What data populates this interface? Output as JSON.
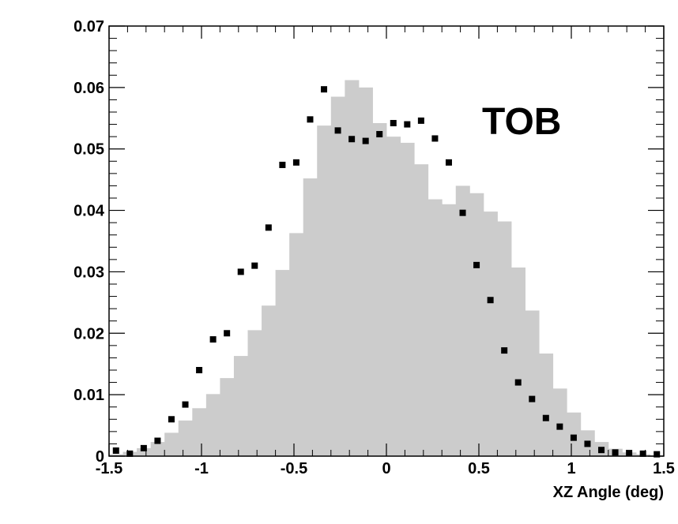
{
  "chart_data": {
    "type": "bar",
    "title": "",
    "xlabel": "XZ Angle (deg)",
    "ylabel": "",
    "annotation": "TOB",
    "xlim": [
      -1.5,
      1.5
    ],
    "ylim": [
      0,
      0.07
    ],
    "grid": false,
    "x_ticks": [
      -1.5,
      -1,
      -0.5,
      0,
      0.5,
      1,
      1.5
    ],
    "x_tick_labels": [
      "-1.5",
      "-1",
      "-0.5",
      "0",
      "0.5",
      "1",
      "1.5"
    ],
    "y_ticks": [
      0,
      0.01,
      0.02,
      0.03,
      0.04,
      0.05,
      0.06,
      0.07
    ],
    "y_tick_labels": [
      "0",
      "0.01",
      "0.02",
      "0.03",
      "0.04",
      "0.05",
      "0.06",
      "0.07"
    ],
    "series": [
      {
        "kind": "filled_histogram",
        "color": "#cccccc",
        "bin_edges": [
          -1.5,
          -1.425,
          -1.35,
          -1.275,
          -1.2,
          -1.125,
          -1.05,
          -0.975,
          -0.9,
          -0.825,
          -0.75,
          -0.675,
          -0.6,
          -0.525,
          -0.45,
          -0.375,
          -0.3,
          -0.225,
          -0.15,
          -0.075,
          0.0,
          0.075,
          0.15,
          0.225,
          0.3,
          0.375,
          0.45,
          0.525,
          0.6,
          0.675,
          0.75,
          0.825,
          0.9,
          0.975,
          1.05,
          1.125,
          1.2,
          1.275,
          1.35,
          1.425,
          1.5
        ],
        "values": [
          0.0003,
          0.0007,
          0.0013,
          0.0023,
          0.0038,
          0.0058,
          0.0078,
          0.0101,
          0.0127,
          0.0163,
          0.0205,
          0.0245,
          0.0303,
          0.0363,
          0.0452,
          0.0538,
          0.0585,
          0.0612,
          0.06,
          0.0542,
          0.052,
          0.051,
          0.0475,
          0.0418,
          0.041,
          0.044,
          0.0428,
          0.0398,
          0.0382,
          0.0307,
          0.0237,
          0.0167,
          0.011,
          0.0071,
          0.0042,
          0.0023,
          0.0012,
          0.0006,
          0.0003,
          0.0001
        ]
      },
      {
        "kind": "markers",
        "color": "#000000",
        "x": [
          -1.4625,
          -1.3875,
          -1.3125,
          -1.2375,
          -1.1625,
          -1.0875,
          -1.0125,
          -0.9375,
          -0.8625,
          -0.7875,
          -0.7125,
          -0.6375,
          -0.5625,
          -0.4875,
          -0.4125,
          -0.3375,
          -0.2625,
          -0.1875,
          -0.1125,
          -0.0375,
          0.0375,
          0.1125,
          0.1875,
          0.2625,
          0.3375,
          0.4125,
          0.4875,
          0.5625,
          0.6375,
          0.7125,
          0.7875,
          0.8625,
          0.9375,
          1.0125,
          1.0875,
          1.1625,
          1.2375,
          1.3125,
          1.3875,
          1.4625
        ],
        "values": [
          0.0009,
          0.0004,
          0.0013,
          0.0025,
          0.006,
          0.0084,
          0.014,
          0.019,
          0.02,
          0.03,
          0.031,
          0.0372,
          0.0474,
          0.0478,
          0.0548,
          0.0597,
          0.053,
          0.0516,
          0.0513,
          0.0524,
          0.0542,
          0.054,
          0.0546,
          0.0517,
          0.0478,
          0.0396,
          0.0311,
          0.0254,
          0.0172,
          0.012,
          0.0093,
          0.0062,
          0.0048,
          0.003,
          0.002,
          0.001,
          0.0006,
          0.0005,
          0.0004,
          0.0003
        ]
      }
    ]
  }
}
